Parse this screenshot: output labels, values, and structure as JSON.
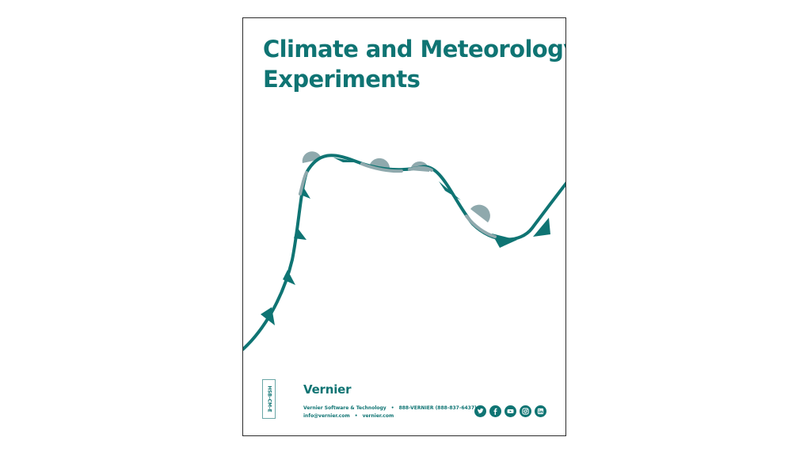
{
  "cover": {
    "title_line1": "Climate and Meteorology",
    "title_line2": "Experiments",
    "product_code": "HSB-CM-E"
  },
  "footer": {
    "brand": "Vernier",
    "company": "Vernier Software & Technology",
    "phone": "888-VERNIER (888-837-6437)",
    "email": "info@vernier.com",
    "website": "vernier.com",
    "social_icons": [
      "twitter-icon",
      "facebook-icon",
      "youtube-icon",
      "instagram-icon",
      "linkedin-icon"
    ]
  },
  "colors": {
    "accent": "#0f7473",
    "light": "#8fa9ad"
  }
}
